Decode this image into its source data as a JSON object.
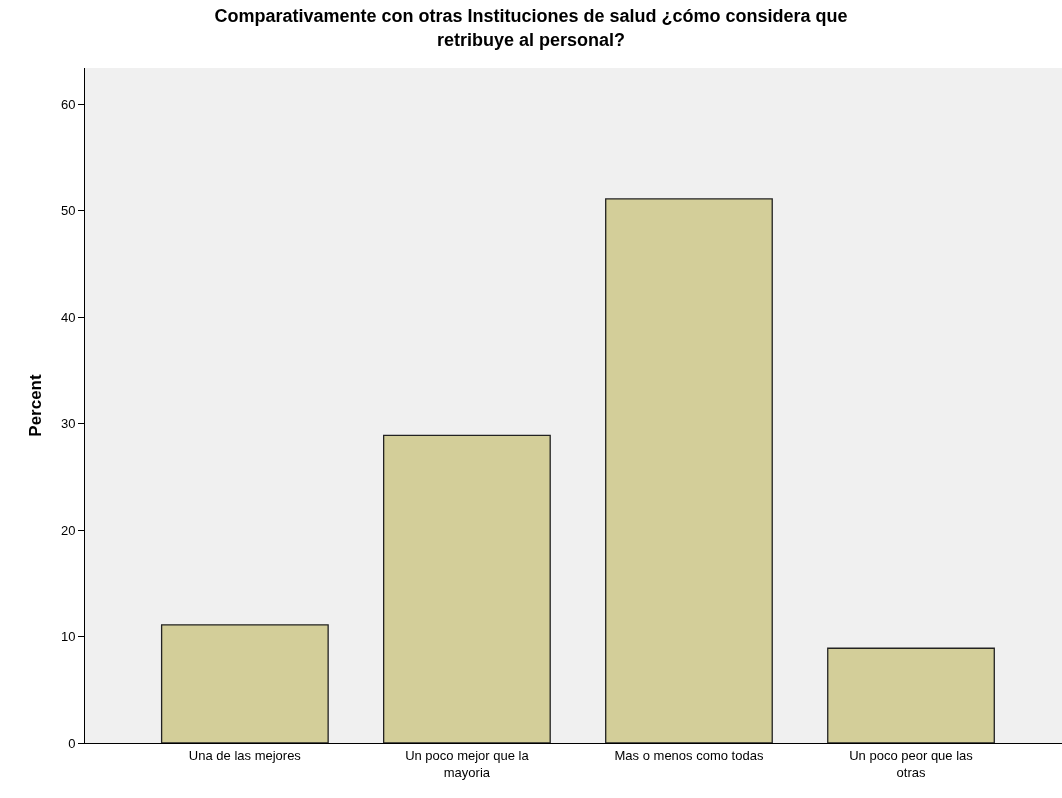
{
  "chart_data": {
    "type": "bar",
    "title": "Comparativamente con otras Instituciones de salud ¿cómo considera que retribuye al personal?",
    "ylabel": "Percent",
    "categories": [
      "Una de las mejores",
      "Un poco mejor que la mayoria",
      "Mas o menos como todas",
      "Un poco peor que las otras"
    ],
    "values": [
      11.1,
      28.9,
      51.1,
      8.9
    ],
    "color": "#d3ce99",
    "ylim": [
      0,
      63.4
    ],
    "yticks": [
      0,
      10,
      20,
      30,
      40,
      50,
      60
    ],
    "grid": false
  }
}
